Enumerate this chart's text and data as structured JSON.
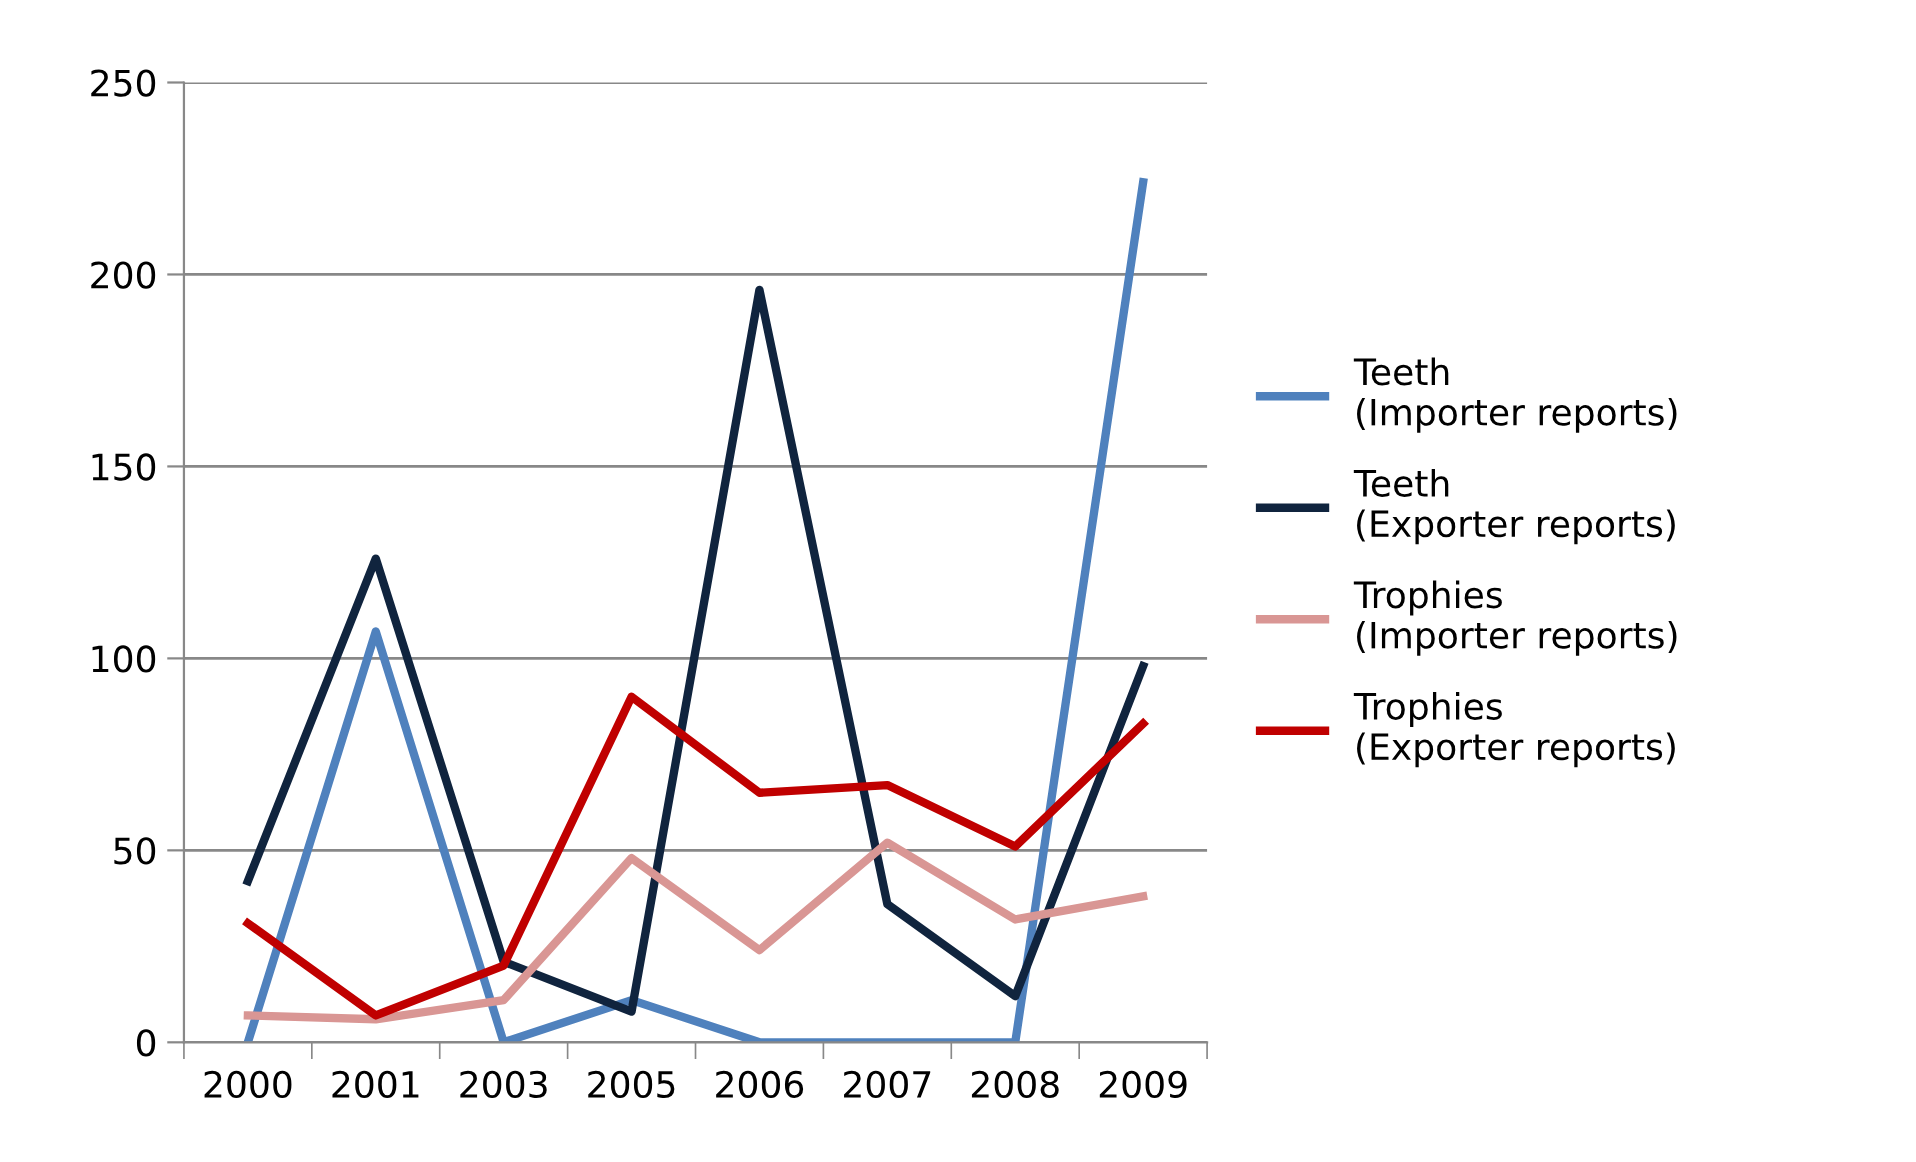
{
  "chart_data": {
    "type": "line",
    "categories": [
      "2000",
      "2001",
      "2003",
      "2005",
      "2006",
      "2007",
      "2008",
      "2009"
    ],
    "series": [
      {
        "name": "Teeth (Importer reports)",
        "color": "#4f81bd",
        "values": [
          0,
          107,
          0,
          11,
          0,
          0,
          0,
          224
        ]
      },
      {
        "name": "Teeth (Exporter reports)",
        "color": "#10243e",
        "values": [
          42,
          126,
          21,
          8,
          196,
          36,
          12,
          98
        ]
      },
      {
        "name": "Trophies (Importer reports)",
        "color": "#d99694",
        "values": [
          7,
          6,
          11,
          48,
          24,
          52,
          32,
          38
        ]
      },
      {
        "name": "Trophies (Exporter reports)",
        "color": "#c00000",
        "values": [
          31,
          7,
          20,
          90,
          65,
          67,
          51,
          83
        ]
      }
    ],
    "ylim": [
      0,
      250
    ],
    "yticks": [
      0,
      50,
      100,
      150,
      200,
      250
    ],
    "grid": "y",
    "legend": "right",
    "marker": "none",
    "line_style": "solid"
  }
}
